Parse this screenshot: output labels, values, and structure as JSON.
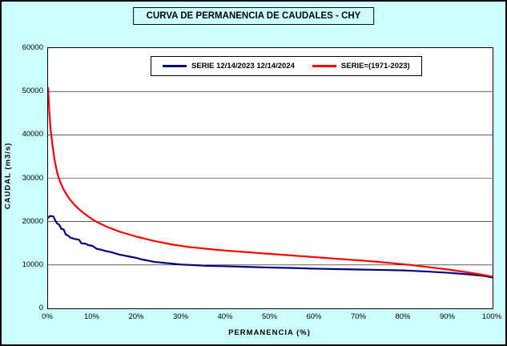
{
  "colors": {
    "background": "#CCFFFF",
    "plot_background": "#FFFFFF",
    "border": "#000000",
    "series_blue": "#000080",
    "series_red": "#FF0000"
  },
  "chart_data": {
    "type": "line",
    "title": "CURVA DE PERMANENCIA DE CAUDALES - CHY",
    "xlabel": "PERMANENCIA (%)",
    "ylabel": "CAUDAL (m3/s)",
    "xlim": [
      0,
      100
    ],
    "ylim": [
      0,
      60000
    ],
    "xticks": [
      0,
      10,
      20,
      30,
      40,
      50,
      60,
      70,
      80,
      90,
      100
    ],
    "xtick_labels": [
      "0%",
      "10%",
      "20%",
      "30%",
      "40%",
      "50%",
      "60%",
      "70%",
      "80%",
      "90%",
      "100%"
    ],
    "yticks": [
      0,
      10000,
      20000,
      30000,
      40000,
      50000,
      60000
    ],
    "ytick_labels": [
      "0",
      "10000",
      "20000",
      "30000",
      "40000",
      "50000",
      "60000"
    ],
    "grid": "horizontal",
    "legend_position": "top-center-inside",
    "series": [
      {
        "name": "SERIE 12/14/2023 12/14/2024",
        "color": "#000080",
        "width": 2.2,
        "points": [
          [
            0,
            20800
          ],
          [
            0.4,
            21300
          ],
          [
            1.2,
            21200
          ],
          [
            1.5,
            20500
          ],
          [
            2,
            19600
          ],
          [
            2.5,
            19300
          ],
          [
            3,
            18300
          ],
          [
            3.5,
            18200
          ],
          [
            4,
            17000
          ],
          [
            4.5,
            16800
          ],
          [
            5,
            16300
          ],
          [
            6,
            16000
          ],
          [
            7,
            15800
          ],
          [
            7.5,
            15000
          ],
          [
            8.5,
            14900
          ],
          [
            9,
            14600
          ],
          [
            10,
            14400
          ],
          [
            11,
            13700
          ],
          [
            12,
            13500
          ],
          [
            13,
            13200
          ],
          [
            14,
            13000
          ],
          [
            15,
            12700
          ],
          [
            16,
            12400
          ],
          [
            17,
            12200
          ],
          [
            18,
            12000
          ],
          [
            19,
            11800
          ],
          [
            20,
            11600
          ],
          [
            21,
            11300
          ],
          [
            22,
            11100
          ],
          [
            23,
            10900
          ],
          [
            24,
            10700
          ],
          [
            25,
            10600
          ],
          [
            26,
            10500
          ],
          [
            27,
            10400
          ],
          [
            28,
            10300
          ],
          [
            30,
            10100
          ],
          [
            32,
            10000
          ],
          [
            34,
            9900
          ],
          [
            36,
            9800
          ],
          [
            38,
            9750
          ],
          [
            40,
            9700
          ],
          [
            45,
            9550
          ],
          [
            50,
            9400
          ],
          [
            55,
            9300
          ],
          [
            60,
            9150
          ],
          [
            65,
            9050
          ],
          [
            70,
            8950
          ],
          [
            75,
            8850
          ],
          [
            80,
            8750
          ],
          [
            85,
            8500
          ],
          [
            90,
            8200
          ],
          [
            95,
            7800
          ],
          [
            98,
            7500
          ],
          [
            100,
            7100
          ]
        ]
      },
      {
        "name": "SERIE=(1971-2023)",
        "color": "#FF0000",
        "width": 2.2,
        "points": [
          [
            0,
            51000
          ],
          [
            0.3,
            45000
          ],
          [
            0.6,
            41000
          ],
          [
            1,
            37500
          ],
          [
            1.5,
            34000
          ],
          [
            2,
            31500
          ],
          [
            2.5,
            29800
          ],
          [
            3,
            28500
          ],
          [
            3.5,
            27400
          ],
          [
            4,
            26500
          ],
          [
            4.5,
            25700
          ],
          [
            5,
            25000
          ],
          [
            6,
            23800
          ],
          [
            7,
            22800
          ],
          [
            8,
            22000
          ],
          [
            9,
            21200
          ],
          [
            10,
            20500
          ],
          [
            11,
            19900
          ],
          [
            12,
            19400
          ],
          [
            13,
            18900
          ],
          [
            14,
            18500
          ],
          [
            15,
            18100
          ],
          [
            16,
            17700
          ],
          [
            17,
            17400
          ],
          [
            18,
            17100
          ],
          [
            19,
            16800
          ],
          [
            20,
            16500
          ],
          [
            22,
            16000
          ],
          [
            24,
            15500
          ],
          [
            26,
            15100
          ],
          [
            28,
            14700
          ],
          [
            30,
            14400
          ],
          [
            32,
            14100
          ],
          [
            34,
            13900
          ],
          [
            36,
            13700
          ],
          [
            38,
            13500
          ],
          [
            40,
            13300
          ],
          [
            42,
            13150
          ],
          [
            44,
            13000
          ],
          [
            46,
            12850
          ],
          [
            48,
            12700
          ],
          [
            50,
            12550
          ],
          [
            52,
            12400
          ],
          [
            54,
            12250
          ],
          [
            56,
            12100
          ],
          [
            58,
            11950
          ],
          [
            60,
            11800
          ],
          [
            62,
            11650
          ],
          [
            64,
            11500
          ],
          [
            66,
            11350
          ],
          [
            68,
            11200
          ],
          [
            70,
            11050
          ],
          [
            72,
            10900
          ],
          [
            74,
            10750
          ],
          [
            76,
            10550
          ],
          [
            78,
            10350
          ],
          [
            80,
            10150
          ],
          [
            82,
            9950
          ],
          [
            84,
            9700
          ],
          [
            86,
            9450
          ],
          [
            88,
            9200
          ],
          [
            90,
            8950
          ],
          [
            92,
            8650
          ],
          [
            94,
            8350
          ],
          [
            96,
            8050
          ],
          [
            98,
            7700
          ],
          [
            100,
            7300
          ]
        ]
      }
    ]
  }
}
